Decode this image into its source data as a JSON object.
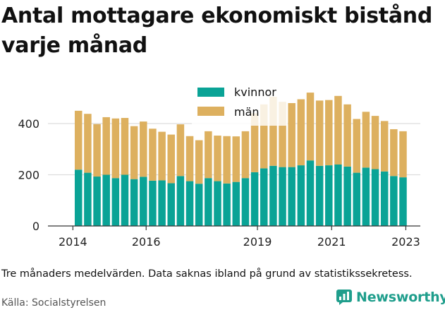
{
  "title": "Antal mottagare ekonomiskt bistånd varje månad",
  "note": "Tre månaders medelvärden. Data saknas ibland på grund av statistikssekretess.",
  "source": "Källa: Socialstyrelsen",
  "brand": {
    "name": "Newsworthy",
    "icon": "newsworthy-logo-icon",
    "color": "#1f9e8c"
  },
  "colors": {
    "kvinnor": "#0aa396",
    "man": "#ddb05f",
    "grid": "#dddddd",
    "axis": "#333333"
  },
  "chart_data": {
    "type": "bar",
    "stacked": true,
    "x_tick_labels": [
      "2014",
      "2016",
      "2019",
      "2021",
      "2023"
    ],
    "y_ticks": [
      0,
      200,
      400
    ],
    "ylim": [
      0,
      560
    ],
    "grid": true,
    "legend_position": "top-center",
    "series": [
      {
        "name": "kvinnor",
        "values": [
          220,
          208,
          193,
          200,
          187,
          200,
          183,
          192,
          177,
          178,
          167,
          195,
          175,
          165,
          187,
          175,
          166,
          172,
          187,
          210,
          225,
          235,
          230,
          230,
          237,
          256,
          235,
          237,
          240,
          232,
          208,
          228,
          222,
          213,
          195,
          190
        ]
      },
      {
        "name": "män",
        "values": [
          230,
          230,
          205,
          225,
          233,
          222,
          207,
          216,
          203,
          190,
          190,
          202,
          176,
          170,
          183,
          178,
          185,
          178,
          183,
          230,
          250,
          270,
          255,
          250,
          258,
          265,
          255,
          255,
          268,
          243,
          210,
          218,
          208,
          197,
          183,
          180
        ]
      }
    ],
    "tick_positions": [
      {
        "label": "2014",
        "bar_index": -0.6
      },
      {
        "label": "2016",
        "bar_index": 7.3
      },
      {
        "label": "2019",
        "bar_index": 19.3
      },
      {
        "label": "2021",
        "bar_index": 27.3
      },
      {
        "label": "2023",
        "bar_index": 35.3
      }
    ]
  }
}
